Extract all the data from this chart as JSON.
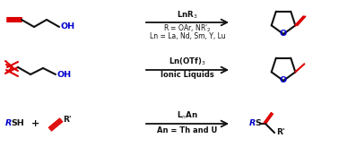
{
  "bg_color": "#ffffff",
  "red": "#dd0000",
  "blue": "#0000cc",
  "black": "#111111",
  "row1_cat": "LnR$_3$",
  "row1_s1": "R = OAr, NR'$_2$",
  "row1_s2": "Ln = La, Nd, Sm, Y, Lu",
  "row2_cat": "Ln(OTf)$_3$",
  "row2_s1": "Ionic Liquids",
  "row3_cat": "L$_n$An",
  "row3_s1": "An = Th and U",
  "figsize": [
    3.78,
    1.74
  ],
  "dpi": 100
}
